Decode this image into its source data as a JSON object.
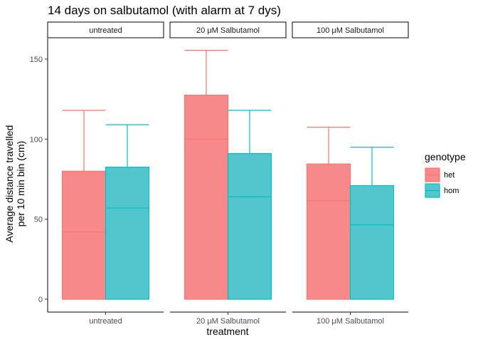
{
  "chart_data": {
    "type": "bar",
    "title": "14 days on salbutamol (with alarm at 7 dys)",
    "xlabel": "treatment",
    "ylabel_lines": [
      "Average distance travelled",
      "per 10 min bin (cm)"
    ],
    "ylim": [
      0,
      160
    ],
    "yticks": [
      0,
      50,
      100,
      150
    ],
    "facets": [
      "untreated",
      "20 μM Salbutamol",
      "100 μM Salbutamol"
    ],
    "categories": [
      "untreated",
      "20 μM Salbutamol",
      "100 μM Salbutamol"
    ],
    "legend": {
      "title": "genotype",
      "position": "right"
    },
    "grid": false,
    "series": [
      {
        "name": "het",
        "color": "#F8766D",
        "fill": "#F8898A",
        "values": [
          80,
          127.5,
          84.5
        ],
        "median": [
          42,
          100,
          61.5
        ],
        "error_upper": [
          118,
          155.5,
          107.5
        ]
      },
      {
        "name": "hom",
        "color": "#00BFC4",
        "fill": "#52C6CB",
        "values": [
          82.5,
          91,
          71
        ],
        "median": [
          57,
          64,
          46.5
        ],
        "error_upper": [
          109,
          118,
          95
        ]
      }
    ]
  }
}
